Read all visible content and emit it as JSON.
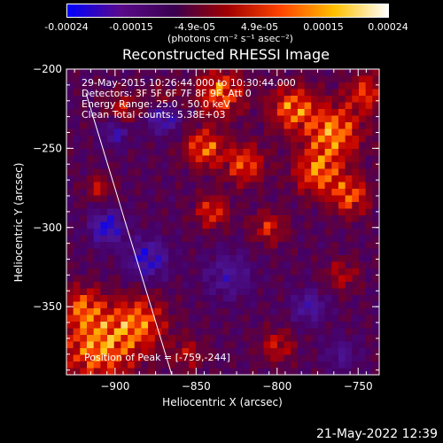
{
  "colorbar": {
    "tick_labels": [
      "-0.00024",
      "-0.00015",
      "-4.9e-05",
      "4.9e-05",
      "0.00015",
      "0.00024"
    ],
    "unit_label": "(photons cm⁻² s⁻¹ asec⁻²)",
    "colors": [
      "#0000ff",
      "#5a0a8a",
      "#3a0050",
      "#a00000",
      "#ff4500",
      "#ffc000",
      "#ffffff"
    ]
  },
  "chart_data": {
    "type": "heatmap",
    "title": "Reconstructed RHESSI Image",
    "xlabel": "Heliocentric X (arcsec)",
    "ylabel": "Heliocentric Y (arcsec)",
    "xlim": [
      -930,
      -737
    ],
    "ylim": [
      -393,
      -200
    ],
    "x_ticks": [
      -900,
      -850,
      -800,
      -750
    ],
    "y_ticks": [
      -200,
      -250,
      -300,
      -350
    ],
    "x_tick_labels": [
      "−900",
      "−850",
      "−800",
      "−750"
    ],
    "y_tick_labels": [
      "−200",
      "−250",
      "−300",
      "−350"
    ],
    "annotations": [
      "29-May-2015 10:26:44.000 to 10:30:44.000",
      "Detectors: 3F 5F 6F 7F 8F 9F, Att 0",
      "Energy Range: 25.0 - 50.0 keV",
      "Clean      Total counts: 5.38E+03"
    ],
    "peak_label": "Position of Peak = [-759,-244]",
    "peak": [
      -759,
      -244
    ],
    "limb_line": [
      [
        -918,
        -215
      ],
      [
        -865,
        -393
      ]
    ]
  },
  "footer": {
    "timestamp": "21-May-2022 12:39"
  }
}
